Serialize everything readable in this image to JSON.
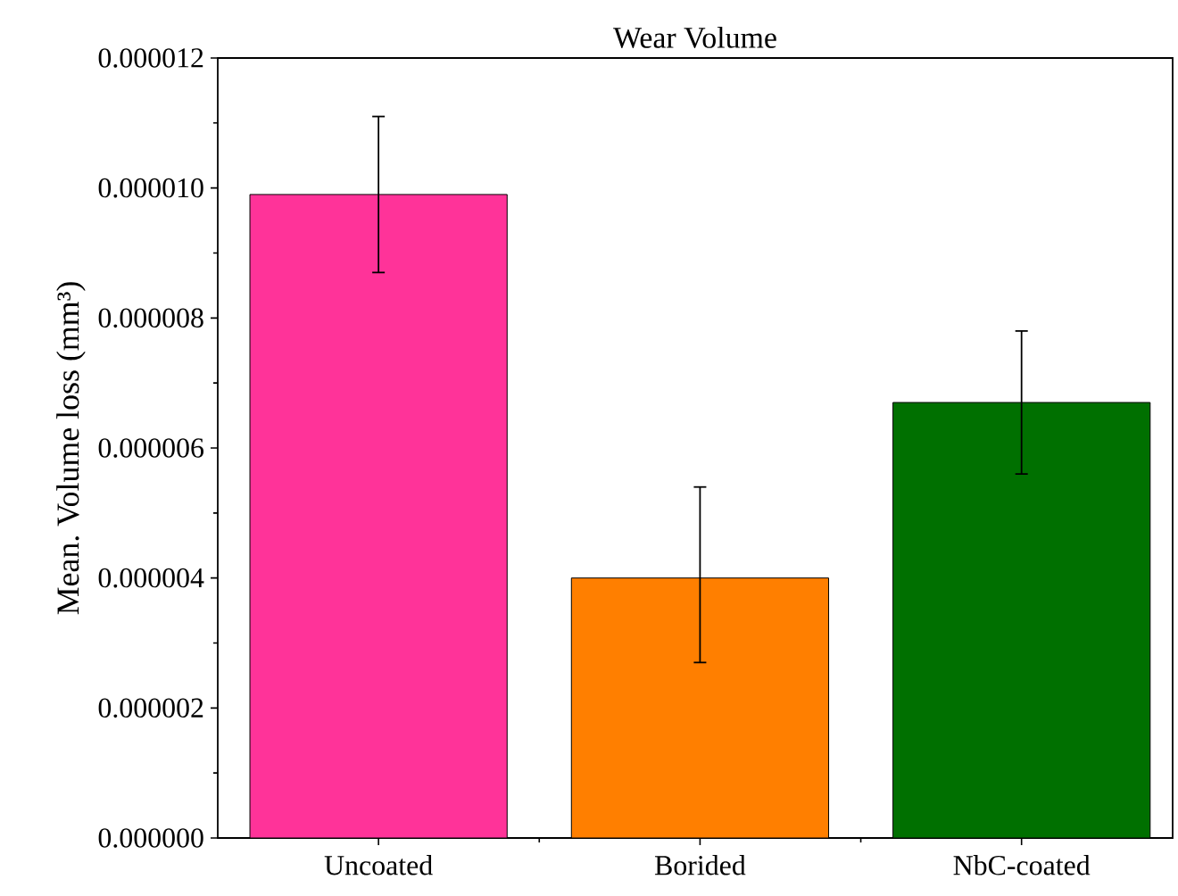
{
  "chart_data": {
    "type": "bar",
    "title": "Wear Volume",
    "ylabel": "Mean. Volume loss (mm³)",
    "categories": [
      "Uncoated",
      "Borided",
      "NbC-coated"
    ],
    "values": [
      9.9e-06,
      4e-06,
      6.7e-06
    ],
    "colors": [
      "#ff3399",
      "#ff7f00",
      "#007000"
    ],
    "errors": [
      [
        8.7e-06,
        1.11e-05
      ],
      [
        2.7e-06,
        5.4e-06
      ],
      [
        5.6e-06,
        7.8e-06
      ]
    ],
    "ylim": [
      0,
      1.2e-05
    ],
    "yticks": [
      {
        "value": 0,
        "label": "0.000000"
      },
      {
        "value": 2e-06,
        "label": "0.000002"
      },
      {
        "value": 4e-06,
        "label": "0.000004"
      },
      {
        "value": 6e-06,
        "label": "0.000006"
      },
      {
        "value": 8e-06,
        "label": "0.000008"
      },
      {
        "value": 1e-05,
        "label": "0.000010"
      },
      {
        "value": 1.2e-05,
        "label": "0.000012"
      }
    ]
  }
}
